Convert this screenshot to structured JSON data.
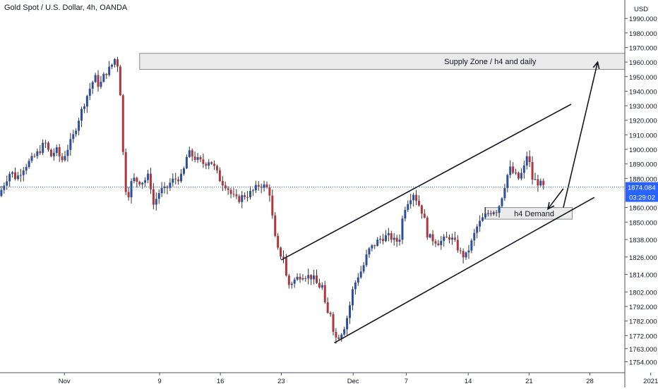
{
  "header": {
    "title": "Gold Spot / U.S. Dollar, 4h, OANDA"
  },
  "price_axis": {
    "currency": "USD",
    "ticks": [
      {
        "label": "1990.000",
        "value": 1990
      },
      {
        "label": "1980.000",
        "value": 1980
      },
      {
        "label": "1970.000",
        "value": 1970
      },
      {
        "label": "1960.000",
        "value": 1960
      },
      {
        "label": "1950.000",
        "value": 1950
      },
      {
        "label": "1940.000",
        "value": 1940
      },
      {
        "label": "1930.000",
        "value": 1930
      },
      {
        "label": "1920.000",
        "value": 1920
      },
      {
        "label": "1910.000",
        "value": 1910
      },
      {
        "label": "1900.000",
        "value": 1900
      },
      {
        "label": "1890.000",
        "value": 1890
      },
      {
        "label": "1880.000",
        "value": 1880
      },
      {
        "label": "1860.000",
        "value": 1860
      },
      {
        "label": "1850.000",
        "value": 1850
      },
      {
        "label": "1838.000",
        "value": 1838
      },
      {
        "label": "1826.000",
        "value": 1826
      },
      {
        "label": "1814.000",
        "value": 1814
      },
      {
        "label": "1802.000",
        "value": 1802
      },
      {
        "label": "1792.000",
        "value": 1792
      },
      {
        "label": "1782.000",
        "value": 1782
      },
      {
        "label": "1772.000",
        "value": 1772
      },
      {
        "label": "1763.000",
        "value": 1763
      },
      {
        "label": "1754.000",
        "value": 1754
      }
    ],
    "current_price": "1874.084",
    "countdown": "03:29:02",
    "current_price_color": "#2962ff"
  },
  "time_axis": {
    "ticks": [
      {
        "label": "Nov",
        "t": -1.6
      },
      {
        "label": "9",
        "t": 7
      },
      {
        "label": "16",
        "t": 12.5
      },
      {
        "label": "23",
        "t": 18
      },
      {
        "label": "Dec",
        "t": 24.5
      },
      {
        "label": "7",
        "t": 29.3
      },
      {
        "label": "14",
        "t": 34.9
      },
      {
        "label": "21",
        "t": 40.4
      },
      {
        "label": "28",
        "t": 45.9
      },
      {
        "label": "2021",
        "t": 51.4
      }
    ]
  },
  "annotations": {
    "supply_label": "Supply Zone / h4 and daily",
    "demand_label": "h4 Demand"
  },
  "chart_data": {
    "type": "candlestick",
    "title": "Gold Spot / U.S. Dollar, 4h, OANDA",
    "y_unit": "USD",
    "ylim": [
      1749,
      1996
    ],
    "x_unit": "trading days from Nov 9",
    "colors": {
      "up": "#2a4f9e",
      "down": "#b0363b"
    },
    "zones": [
      {
        "name": "Supply Zone / h4 and daily",
        "t_start": 5.2,
        "t_end": 50.7,
        "price_low": 1955,
        "price_high": 1966
      },
      {
        "name": "h4 Demand",
        "t_start": 36.4,
        "t_end": 44.3,
        "price_low": 1852,
        "price_high": 1860
      }
    ],
    "trendlines": [
      {
        "role": "upper channel",
        "t1": 18.0,
        "p1": 1824,
        "t2": 44.2,
        "p2": 1931
      },
      {
        "role": "lower channel",
        "t1": 22.8,
        "p1": 1767,
        "t2": 46.3,
        "p2": 1867
      }
    ],
    "projection_arrows": [
      {
        "from_t": 43.5,
        "from_p": 1873,
        "to_t": 42.1,
        "to_p": 1859
      },
      {
        "from_t": 43.5,
        "from_p": 1860,
        "to_t": 46.6,
        "to_p": 1960
      }
    ],
    "path": [
      [
        -7.3,
        1868
      ],
      [
        -6.7,
        1878
      ],
      [
        -6.2,
        1885
      ],
      [
        -5.7,
        1880
      ],
      [
        -5.0,
        1888
      ],
      [
        -4.3,
        1893
      ],
      [
        -3.6,
        1899
      ],
      [
        -3.1,
        1905
      ],
      [
        -2.6,
        1895
      ],
      [
        -2.1,
        1900
      ],
      [
        -1.6,
        1892
      ],
      [
        -1.1,
        1900
      ],
      [
        -0.6,
        1908
      ],
      [
        -0.1,
        1920
      ],
      [
        0.4,
        1931
      ],
      [
        0.9,
        1941
      ],
      [
        1.4,
        1950
      ],
      [
        1.8,
        1943
      ],
      [
        2.3,
        1952
      ],
      [
        2.8,
        1956
      ],
      [
        3.2,
        1962
      ],
      [
        3.6,
        1956
      ],
      [
        3.9,
        1905
      ],
      [
        4.1,
        1875
      ],
      [
        4.4,
        1868
      ],
      [
        4.8,
        1880
      ],
      [
        5.3,
        1878
      ],
      [
        5.8,
        1878
      ],
      [
        6.3,
        1882
      ],
      [
        6.7,
        1862
      ],
      [
        7.3,
        1872
      ],
      [
        7.8,
        1872
      ],
      [
        8.3,
        1878
      ],
      [
        8.8,
        1880
      ],
      [
        9.3,
        1881
      ],
      [
        9.8,
        1898
      ],
      [
        10.3,
        1895
      ],
      [
        10.8,
        1892
      ],
      [
        11.3,
        1890
      ],
      [
        11.8,
        1893
      ],
      [
        12.3,
        1886
      ],
      [
        12.8,
        1878
      ],
      [
        13.3,
        1875
      ],
      [
        13.8,
        1868
      ],
      [
        14.3,
        1865
      ],
      [
        14.8,
        1868
      ],
      [
        15.3,
        1869
      ],
      [
        15.8,
        1872
      ],
      [
        16.3,
        1876
      ],
      [
        16.9,
        1874
      ],
      [
        17.2,
        1870
      ],
      [
        17.5,
        1850
      ],
      [
        17.8,
        1833
      ],
      [
        18.1,
        1828
      ],
      [
        18.5,
        1826
      ],
      [
        18.8,
        1806
      ],
      [
        19.1,
        1808
      ],
      [
        19.6,
        1811
      ],
      [
        20.1,
        1814
      ],
      [
        20.6,
        1813
      ],
      [
        21.1,
        1812
      ],
      [
        21.6,
        1806
      ],
      [
        22.0,
        1806
      ],
      [
        22.3,
        1786
      ],
      [
        22.7,
        1788
      ],
      [
        23.1,
        1770
      ],
      [
        23.5,
        1772
      ],
      [
        23.9,
        1777
      ],
      [
        24.3,
        1787
      ],
      [
        24.7,
        1803
      ],
      [
        25.1,
        1812
      ],
      [
        25.6,
        1818
      ],
      [
        26.1,
        1830
      ],
      [
        26.6,
        1834
      ],
      [
        27.1,
        1838
      ],
      [
        27.6,
        1840
      ],
      [
        28.1,
        1840
      ],
      [
        28.6,
        1836
      ],
      [
        29.0,
        1840
      ],
      [
        29.3,
        1858
      ],
      [
        29.8,
        1866
      ],
      [
        30.2,
        1870
      ],
      [
        30.7,
        1862
      ],
      [
        31.1,
        1855
      ],
      [
        31.5,
        1840
      ],
      [
        32.0,
        1838
      ],
      [
        32.5,
        1836
      ],
      [
        33.0,
        1838
      ],
      [
        33.5,
        1840
      ],
      [
        34.0,
        1835
      ],
      [
        34.5,
        1828
      ],
      [
        34.9,
        1826
      ],
      [
        35.4,
        1835
      ],
      [
        35.9,
        1846
      ],
      [
        36.4,
        1852
      ],
      [
        36.9,
        1856
      ],
      [
        37.4,
        1858
      ],
      [
        37.8,
        1858
      ],
      [
        38.2,
        1868
      ],
      [
        38.6,
        1880
      ],
      [
        38.9,
        1887
      ],
      [
        39.3,
        1883
      ],
      [
        39.7,
        1880
      ],
      [
        40.1,
        1885
      ],
      [
        40.3,
        1890
      ],
      [
        40.5,
        1898
      ],
      [
        40.7,
        1890
      ],
      [
        40.9,
        1880
      ],
      [
        41.3,
        1878
      ],
      [
        41.7,
        1876
      ],
      [
        41.9,
        1874
      ]
    ]
  }
}
